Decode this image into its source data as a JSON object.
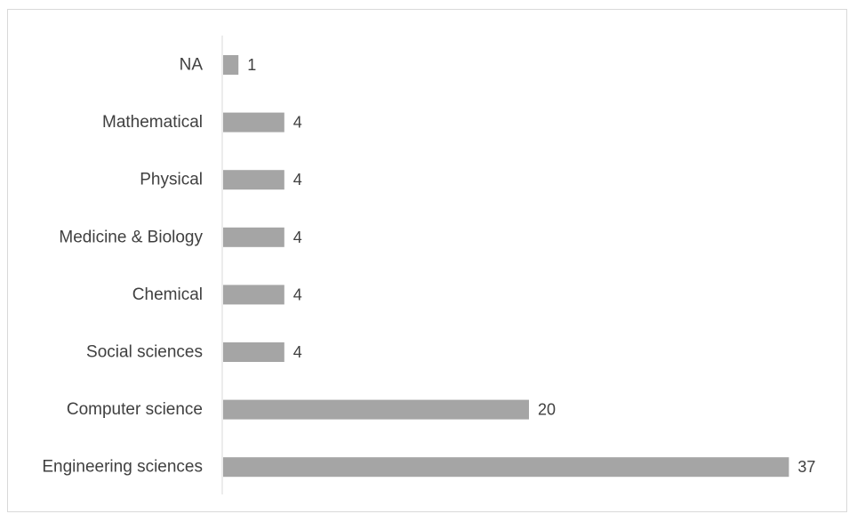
{
  "chart_data": {
    "type": "bar",
    "orientation": "horizontal",
    "categories": [
      "NA",
      "Mathematical",
      "Physical",
      "Medicine & Biology",
      "Chemical",
      "Social sciences",
      "Computer science",
      "Engineering sciences"
    ],
    "values": [
      1,
      4,
      4,
      4,
      4,
      4,
      20,
      37
    ],
    "xlim": [
      0,
      37
    ],
    "grid": false,
    "legend": "none",
    "data_labels": true,
    "colors": {
      "bar": "#a5a5a5",
      "axis": "#d9d9d9",
      "text": "#404040",
      "frame": "#d9d9d9"
    }
  }
}
